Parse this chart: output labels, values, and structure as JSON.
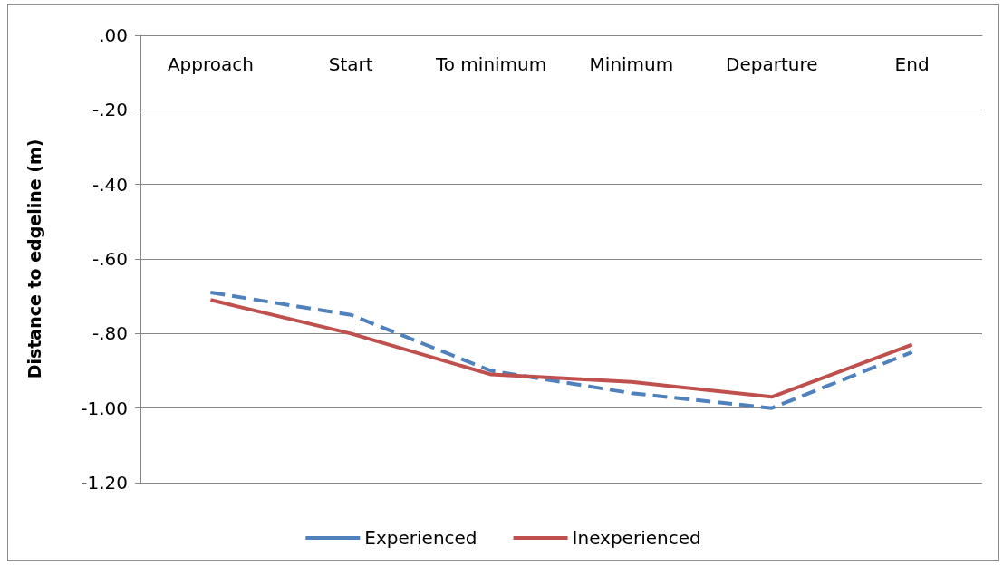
{
  "chart_data": {
    "type": "line",
    "ylabel": "Distance to edgeline (m)",
    "categories": [
      "Approach",
      "Start",
      "To minimum",
      "Minimum",
      "Departure",
      "End"
    ],
    "series": [
      {
        "name": "Experienced",
        "color": "#4f81bd",
        "line_style": "dashed",
        "values": [
          -0.69,
          -0.75,
          -0.9,
          -0.96,
          -1.0,
          -0.85
        ]
      },
      {
        "name": "Inexperienced",
        "color": "#c0504d",
        "line_style": "solid",
        "values": [
          -0.71,
          -0.8,
          -0.91,
          -0.93,
          -0.97,
          -0.83
        ]
      }
    ],
    "ylim": [
      -1.2,
      0
    ],
    "yticks": [
      {
        "value": 0,
        "label": ".00"
      },
      {
        "value": -0.2,
        "label": "-.20"
      },
      {
        "value": -0.4,
        "label": "-.40"
      },
      {
        "value": -0.6,
        "label": "-.60"
      },
      {
        "value": -0.8,
        "label": "-.80"
      },
      {
        "value": -1.0,
        "label": "-1.00"
      },
      {
        "value": -1.2,
        "label": "-1.20"
      }
    ],
    "grid": "y",
    "legend": "bottom",
    "marker": "none"
  }
}
